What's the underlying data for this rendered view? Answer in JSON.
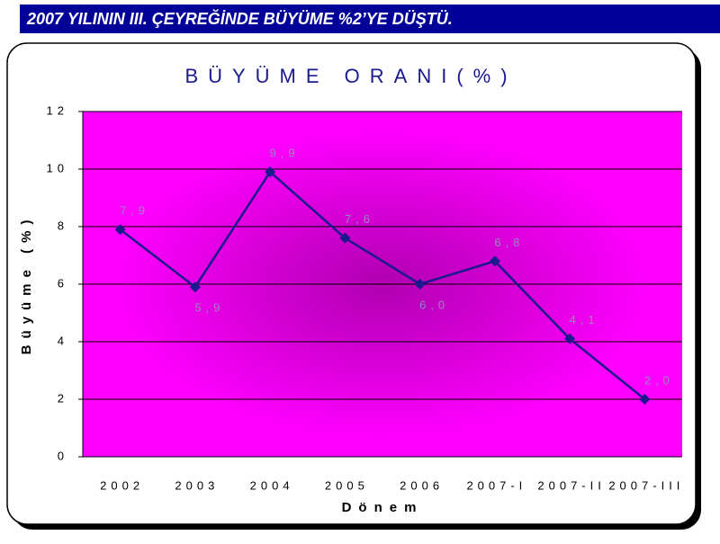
{
  "header": {
    "title": "2007 YILININ III. ÇEYREĞİNDE BÜYÜME %2’YE DÜŞTÜ."
  },
  "chart_data": {
    "type": "line",
    "title": "BÜYÜME ORANI(%)",
    "x_label": "Dönem",
    "y_label": "Büyüme (%)",
    "categories": [
      "2002",
      "2003",
      "2004",
      "2005",
      "2006",
      "2007-I",
      "2007-II",
      "2007-III"
    ],
    "values": [
      7.9,
      5.9,
      9.9,
      7.6,
      6.0,
      6.8,
      4.1,
      2.0
    ],
    "value_labels": [
      "7,9",
      "5,9",
      "9,9",
      "7,6",
      "6,0",
      "6,8",
      "4,1",
      "2,0"
    ],
    "color": "#1a1a8c",
    "ylim": [
      0,
      12
    ],
    "yticks": [
      0,
      2,
      4,
      6,
      8,
      10,
      12
    ],
    "grid": true
  }
}
